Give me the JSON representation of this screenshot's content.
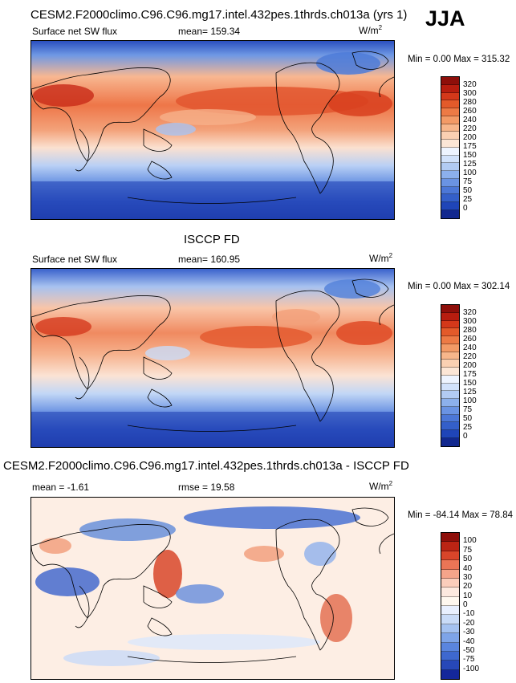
{
  "season": "JJA",
  "palette_abs": [
    "#f3f8ff",
    "#dde9fb",
    "#c4d8f6",
    "#a8c4f0",
    "#86aae8",
    "#6690de",
    "#4a77d4",
    "#3460c8",
    "#2449b8",
    "#1a33a2",
    "#12208a"
  ],
  "palette_warm": [
    "#fde0cf",
    "#fac5a8",
    "#f6a683",
    "#f08763",
    "#e96a47",
    "#e04f31",
    "#d33521",
    "#bf2315",
    "#9f150b",
    "#7a0a05"
  ],
  "panels": [
    {
      "title": "CESM2.F2000climo.C96.C96.mg17.intel.432pes.1thrds.ch013a (yrs 1)",
      "left_label": "Surface net SW flux",
      "mean_label": "mean= 159.34",
      "unit_base": "W/m",
      "unit_sup": "2",
      "minmax": "Min =   0.00 Max = 315.32",
      "colorbar": {
        "colors": [
          "#8e0f0a",
          "#b71d0f",
          "#d4381a",
          "#e35a2a",
          "#ed7a45",
          "#f39a66",
          "#f7b68b",
          "#fad0b2",
          "#fce6d6",
          "#eef4ff",
          "#d2e2fb",
          "#b2cbf3",
          "#8cb0ec",
          "#6a93e3",
          "#4c77d7",
          "#345fc9",
          "#1f45b8",
          "#12288f"
        ],
        "labels": [
          "320",
          "300",
          "280",
          "260",
          "240",
          "220",
          "200",
          "175",
          "150",
          "125",
          "100",
          "75",
          "50",
          "25",
          "0"
        ]
      }
    },
    {
      "title": "ISCCP FD",
      "left_label": "Surface net SW flux",
      "mean_label": "mean= 160.95",
      "unit_base": "W/m",
      "unit_sup": "2",
      "minmax": "Min =   0.00 Max = 302.14",
      "colorbar": {
        "colors": [
          "#8e0f0a",
          "#b71d0f",
          "#d4381a",
          "#e35a2a",
          "#ed7a45",
          "#f39a66",
          "#f7b68b",
          "#fad0b2",
          "#fce6d6",
          "#eef4ff",
          "#d2e2fb",
          "#b2cbf3",
          "#8cb0ec",
          "#6a93e3",
          "#4c77d7",
          "#345fc9",
          "#1f45b8",
          "#12288f"
        ],
        "labels": [
          "320",
          "300",
          "280",
          "260",
          "240",
          "220",
          "200",
          "175",
          "150",
          "125",
          "100",
          "75",
          "50",
          "25",
          "0"
        ]
      }
    },
    {
      "title": "CESM2.F2000climo.C96.C96.mg17.intel.432pes.1thrds.ch013a - ISCCP FD",
      "left_label": "mean =  -1.61",
      "mean_label": "rmse =  19.58",
      "unit_base": "W/m",
      "unit_sup": "2",
      "minmax": "Min = -84.14 Max =  78.84",
      "colorbar": {
        "colors": [
          "#8e0f0a",
          "#bb2414",
          "#d8452a",
          "#ea7556",
          "#f5a48a",
          "#fbcdbb",
          "#fde9df",
          "#fff8ef",
          "#e9f0ff",
          "#c9dbf8",
          "#a5c2f1",
          "#7ea4e8",
          "#5a85de",
          "#3e68cf",
          "#2748b8",
          "#14279a"
        ],
        "labels": [
          "100",
          "75",
          "50",
          "40",
          "30",
          "20",
          "10",
          "0",
          "-10",
          "-20",
          "-30",
          "-40",
          "-50",
          "-75",
          "-100"
        ]
      }
    }
  ]
}
